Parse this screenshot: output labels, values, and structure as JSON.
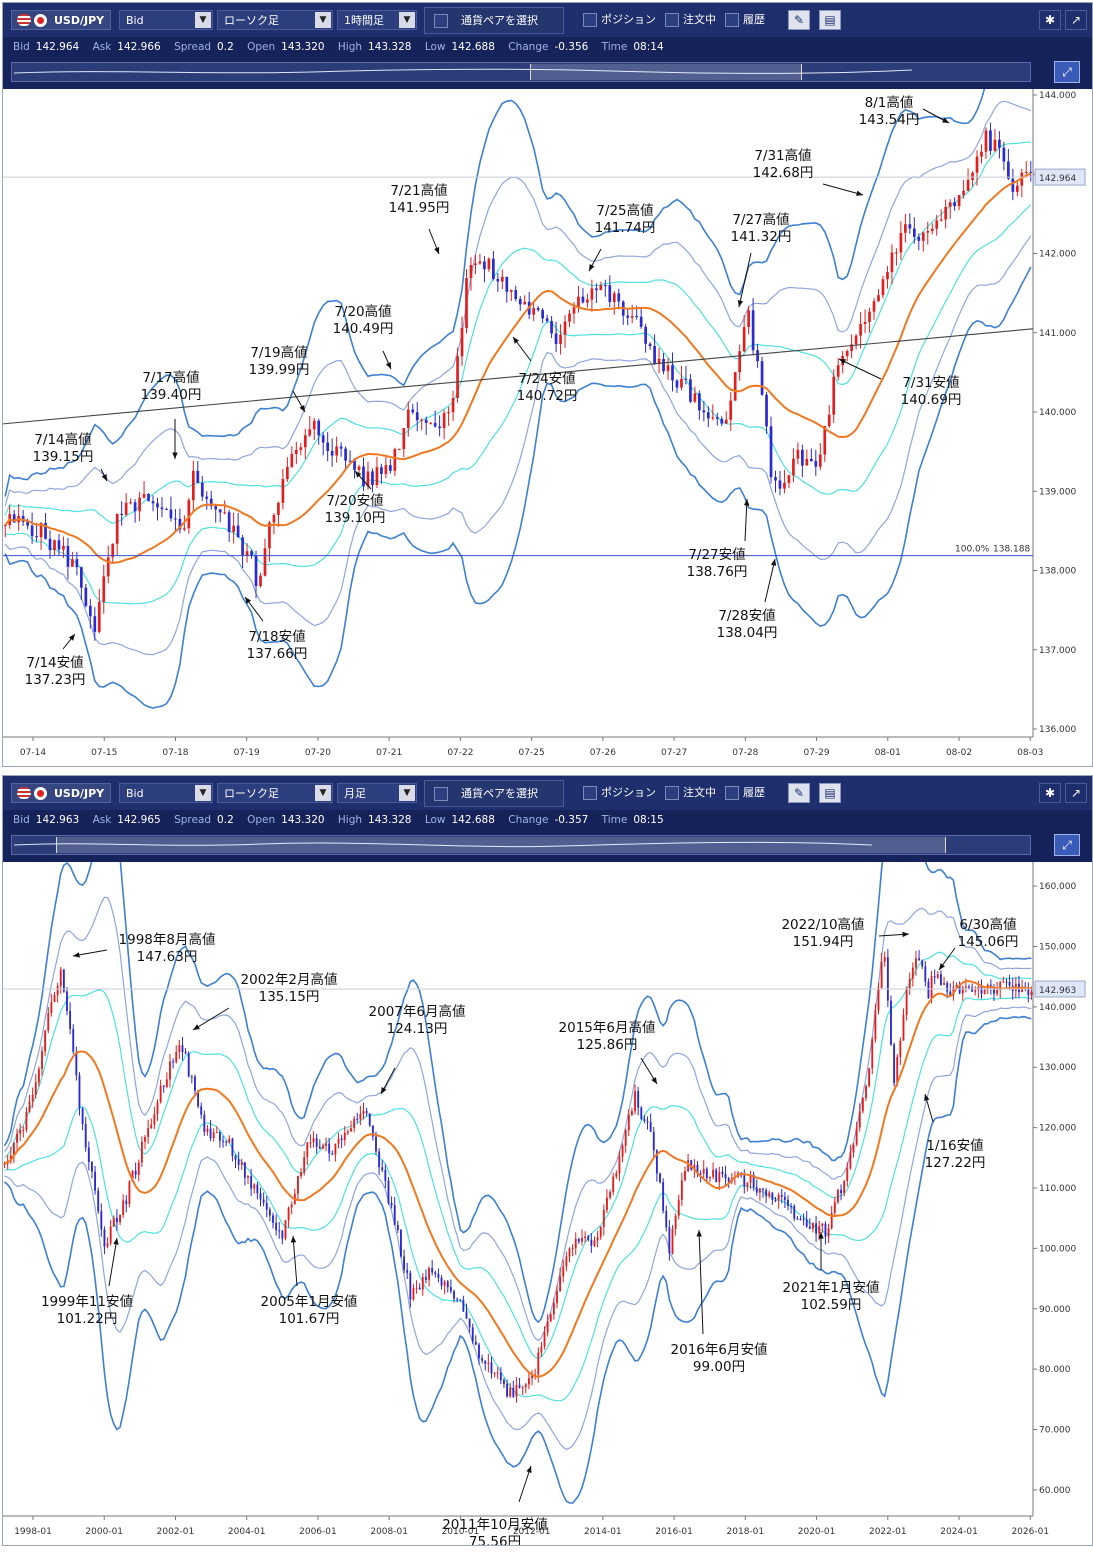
{
  "panels": [
    {
      "pair": "USD/JPY",
      "price_type": "Bid",
      "chart_style": "ローソク足",
      "timeframe": "1時間足",
      "select_pair_label": "通貨ペアを選択",
      "toggles": [
        "ポジション",
        "注文中",
        "履歴"
      ],
      "quote": {
        "bid_label": "Bid",
        "bid": "142.964",
        "ask_label": "Ask",
        "ask": "142.966",
        "spread_label": "Spread",
        "spread": "0.2",
        "open_label": "Open",
        "open": "143.320",
        "high_label": "High",
        "high": "143.328",
        "low_label": "Low",
        "low": "142.688",
        "change_label": "Change",
        "change": "-0.356",
        "time_label": "Time",
        "time": "08:14"
      },
      "current_price_tag": "142.964",
      "fib_label": "100.0%",
      "fib_value": "138.188",
      "icons": [
        "gear-icon",
        "popout-icon",
        "draw-tool-icon",
        "window-icon",
        "zoom-icon"
      ]
    },
    {
      "pair": "USD/JPY",
      "price_type": "Bid",
      "chart_style": "ローソク足",
      "timeframe": "月足",
      "select_pair_label": "通貨ペアを選択",
      "toggles": [
        "ポジション",
        "注文中",
        "履歴"
      ],
      "quote": {
        "bid_label": "Bid",
        "bid": "142.963",
        "ask_label": "Ask",
        "ask": "142.965",
        "spread_label": "Spread",
        "spread": "0.2",
        "open_label": "Open",
        "open": "143.320",
        "high_label": "High",
        "high": "143.328",
        "low_label": "Low",
        "low": "142.688",
        "change_label": "Change",
        "change": "-0.357",
        "time_label": "Time",
        "time": "08:15"
      },
      "current_price_tag": "142.963",
      "icons": [
        "gear-icon",
        "popout-icon",
        "draw-tool-icon",
        "window-icon",
        "zoom-icon"
      ]
    }
  ],
  "chart_data": [
    {
      "type": "candlestick",
      "title": "",
      "indicators": [
        "Bollinger Bands",
        "Moving Average",
        "Trendline",
        "Fibonacci 100.0%"
      ],
      "x_ticks": [
        "07-14",
        "07-15",
        "07-18",
        "07-19",
        "07-20",
        "07-21",
        "07-22",
        "07-25",
        "07-26",
        "07-27",
        "07-28",
        "07-29",
        "08-01",
        "08-02",
        "08-03"
      ],
      "y_ticks": [
        "144.000",
        "143.000",
        "142.000",
        "141.000",
        "140.000",
        "139.000",
        "138.000",
        "137.000",
        "136.000"
      ],
      "ylim": [
        136.0,
        144.0
      ],
      "path_points": [
        [
          0,
          138.6
        ],
        [
          1,
          138.1
        ],
        [
          1.5,
          137.3
        ],
        [
          2,
          138.6
        ],
        [
          2.5,
          138.9
        ],
        [
          3,
          138.7
        ],
        [
          3.5,
          138.5
        ],
        [
          3.7,
          139.2
        ],
        [
          4.5,
          138.6
        ],
        [
          5,
          138.2
        ],
        [
          5.2,
          137.8
        ],
        [
          5.5,
          138.7
        ],
        [
          6,
          139.4
        ],
        [
          6.5,
          139.8
        ],
        [
          7,
          139.5
        ],
        [
          7.5,
          139.3
        ],
        [
          7.7,
          139.1
        ],
        [
          8.3,
          139.4
        ],
        [
          8.7,
          140.1
        ],
        [
          9.2,
          139.8
        ],
        [
          9.7,
          140.2
        ],
        [
          10,
          141.9
        ],
        [
          10.5,
          141.8
        ],
        [
          11,
          141.5
        ],
        [
          11.6,
          141.2
        ],
        [
          12,
          140.9
        ],
        [
          12.4,
          141.4
        ],
        [
          13,
          141.6
        ],
        [
          13.5,
          141.3
        ],
        [
          14,
          141.0
        ],
        [
          14.5,
          140.5
        ],
        [
          15,
          140.3
        ],
        [
          15.5,
          139.8
        ],
        [
          16,
          140.1
        ],
        [
          16.4,
          141.3
        ],
        [
          16.7,
          140.2
        ],
        [
          17,
          139.0
        ],
        [
          17.5,
          139.4
        ],
        [
          18,
          139.3
        ],
        [
          18.4,
          140.5
        ],
        [
          18.8,
          140.8
        ],
        [
          19.3,
          141.4
        ],
        [
          19.9,
          142.3
        ],
        [
          20.4,
          142.2
        ],
        [
          20.9,
          142.5
        ],
        [
          21.4,
          142.8
        ],
        [
          21.8,
          143.5
        ],
        [
          22.2,
          143.2
        ],
        [
          22.4,
          142.9
        ]
      ],
      "annotations": [
        {
          "label": "7/14高値",
          "value": "139.15円"
        },
        {
          "label": "7/14安値",
          "value": "137.23円"
        },
        {
          "label": "7/17高値",
          "value": "139.40円"
        },
        {
          "label": "7/18安値",
          "value": "137.66円"
        },
        {
          "label": "7/19高値",
          "value": "139.99円"
        },
        {
          "label": "7/20高値",
          "value": "140.49円"
        },
        {
          "label": "7/20安値",
          "value": "139.10円"
        },
        {
          "label": "7/21高値",
          "value": "141.95円"
        },
        {
          "label": "7/24安値",
          "value": "140.72円"
        },
        {
          "label": "7/25高値",
          "value": "141.74円"
        },
        {
          "label": "7/27高値",
          "value": "141.32円"
        },
        {
          "label": "7/27安値",
          "value": "138.76円"
        },
        {
          "label": "7/28安値",
          "value": "138.04円"
        },
        {
          "label": "7/31高値",
          "value": "142.68円"
        },
        {
          "label": "7/31安値",
          "value": "140.69円"
        },
        {
          "label": "8/1高値",
          "value": "143.54円"
        }
      ]
    },
    {
      "type": "candlestick",
      "title": "",
      "indicators": [
        "Bollinger Bands",
        "Moving Average"
      ],
      "x_ticks": [
        "1998-01",
        "2000-01",
        "2002-01",
        "2004-01",
        "2006-01",
        "2008-01",
        "2010-01",
        "2012-01",
        "2014-01",
        "2016-01",
        "2018-01",
        "2020-01",
        "2022-01",
        "2024-01",
        "2026-01"
      ],
      "y_ticks": [
        "160.000",
        "150.000",
        "140.000",
        "130.000",
        "120.000",
        "110.000",
        "100.000",
        "90.000",
        "80.000",
        "70.000",
        "60.000"
      ],
      "ylim": [
        57.0,
        163.0
      ],
      "path_points": [
        [
          1997.0,
          115
        ],
        [
          1997.6,
          122
        ],
        [
          1998.6,
          147
        ],
        [
          1999.3,
          118
        ],
        [
          1999.9,
          101
        ],
        [
          2000.5,
          108
        ],
        [
          2001.3,
          122
        ],
        [
          2002.1,
          135
        ],
        [
          2002.8,
          120
        ],
        [
          2003.6,
          117
        ],
        [
          2004.6,
          106
        ],
        [
          2005.1,
          102
        ],
        [
          2005.9,
          118
        ],
        [
          2006.6,
          116
        ],
        [
          2007.5,
          124
        ],
        [
          2008.4,
          105
        ],
        [
          2008.9,
          92
        ],
        [
          2009.5,
          96
        ],
        [
          2010.3,
          91
        ],
        [
          2010.9,
          83
        ],
        [
          2011.8,
          76
        ],
        [
          2012.5,
          79
        ],
        [
          2013.5,
          100
        ],
        [
          2014.4,
          102
        ],
        [
          2015.5,
          125
        ],
        [
          2016.0,
          118
        ],
        [
          2016.5,
          100
        ],
        [
          2017.0,
          114
        ],
        [
          2017.8,
          112
        ],
        [
          2018.9,
          111
        ],
        [
          2019.8,
          108
        ],
        [
          2020.6,
          104
        ],
        [
          2021.1,
          103
        ],
        [
          2021.8,
          114
        ],
        [
          2022.4,
          131
        ],
        [
          2022.8,
          150
        ],
        [
          2023.1,
          128
        ],
        [
          2023.5,
          143
        ],
        [
          2023.8,
          149
        ],
        [
          2024.1,
          142
        ],
        [
          2024.3,
          146
        ],
        [
          2024.5,
          143
        ]
      ],
      "annotations": [
        {
          "label": "1998年8月高値",
          "value": "147.63円"
        },
        {
          "label": "1999年11安値",
          "value": "101.22円"
        },
        {
          "label": "2002年2月高値",
          "value": "135.15円"
        },
        {
          "label": "2005年1月安値",
          "value": "101.67円"
        },
        {
          "label": "2007年6月高値",
          "value": "124.13円"
        },
        {
          "label": "2011年10月安値",
          "value": "75.56円"
        },
        {
          "label": "2015年6月高値",
          "value": "125.86円"
        },
        {
          "label": "2016年6月安値",
          "value": "99.00円"
        },
        {
          "label": "2021年1月安値",
          "value": "102.59円"
        },
        {
          "label": "2022/10高値",
          "value": "151.94円"
        },
        {
          "label": "6/30高値",
          "value": "145.06円"
        },
        {
          "label": "1/16安値",
          "value": "127.22円"
        }
      ]
    }
  ]
}
